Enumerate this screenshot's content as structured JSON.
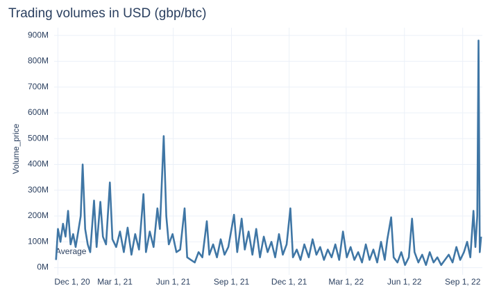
{
  "chart_data": {
    "type": "line",
    "title": "Trading volumes in USD (gbp/btc)",
    "y_label": "Volume_price",
    "annotation": "Average",
    "grid": true,
    "x": [
      "2020-11-28",
      "2020-12-01",
      "2020-12-05",
      "2020-12-09",
      "2020-12-13",
      "2020-12-17",
      "2020-12-21",
      "2020-12-25",
      "2020-12-29",
      "2021-01-02",
      "2021-01-06",
      "2021-01-09",
      "2021-01-13",
      "2021-01-17",
      "2021-01-21",
      "2021-01-27",
      "2021-01-31",
      "2021-02-06",
      "2021-02-10",
      "2021-02-15",
      "2021-02-21",
      "2021-02-25",
      "2021-03-03",
      "2021-03-09",
      "2021-03-15",
      "2021-03-21",
      "2021-03-27",
      "2021-04-02",
      "2021-04-08",
      "2021-04-15",
      "2021-04-19",
      "2021-04-25",
      "2021-05-01",
      "2021-05-07",
      "2021-05-11",
      "2021-05-17",
      "2021-05-21",
      "2021-05-25",
      "2021-05-31",
      "2021-06-06",
      "2021-06-12",
      "2021-06-19",
      "2021-06-23",
      "2021-06-29",
      "2021-07-05",
      "2021-07-11",
      "2021-07-17",
      "2021-07-24",
      "2021-07-28",
      "2021-08-03",
      "2021-08-09",
      "2021-08-15",
      "2021-08-21",
      "2021-08-27",
      "2021-09-05",
      "2021-09-10",
      "2021-09-17",
      "2021-09-22",
      "2021-09-28",
      "2021-10-04",
      "2021-10-10",
      "2021-10-16",
      "2021-10-22",
      "2021-10-28",
      "2021-11-03",
      "2021-11-09",
      "2021-11-15",
      "2021-11-21",
      "2021-11-27",
      "2021-12-03",
      "2021-12-07",
      "2021-12-13",
      "2021-12-19",
      "2021-12-25",
      "2022-01-01",
      "2022-01-07",
      "2022-01-13",
      "2022-01-19",
      "2022-01-25",
      "2022-01-31",
      "2022-02-06",
      "2022-02-12",
      "2022-02-18",
      "2022-02-24",
      "2022-03-02",
      "2022-03-08",
      "2022-03-14",
      "2022-03-20",
      "2022-03-26",
      "2022-04-01",
      "2022-04-07",
      "2022-04-13",
      "2022-04-19",
      "2022-04-25",
      "2022-05-01",
      "2022-05-05",
      "2022-05-11",
      "2022-05-15",
      "2022-05-21",
      "2022-05-27",
      "2022-06-02",
      "2022-06-08",
      "2022-06-13",
      "2022-06-17",
      "2022-06-23",
      "2022-06-29",
      "2022-07-05",
      "2022-07-11",
      "2022-07-17",
      "2022-07-23",
      "2022-07-29",
      "2022-08-04",
      "2022-08-10",
      "2022-08-16",
      "2022-08-22",
      "2022-08-28",
      "2022-09-03",
      "2022-09-08",
      "2022-09-13",
      "2022-09-18",
      "2022-09-21",
      "2022-09-24",
      "2022-09-26",
      "2022-09-28",
      "2022-09-30"
    ],
    "series": [
      {
        "name": "Volume_price",
        "color": "#3f76a5",
        "values": [
          30,
          150,
          100,
          170,
          120,
          220,
          90,
          130,
          80,
          140,
          200,
          400,
          150,
          90,
          60,
          260,
          80,
          255,
          120,
          90,
          330,
          110,
          80,
          140,
          60,
          155,
          50,
          130,
          70,
          285,
          60,
          140,
          80,
          230,
          150,
          510,
          200,
          90,
          130,
          60,
          70,
          230,
          40,
          30,
          20,
          60,
          40,
          180,
          50,
          90,
          40,
          110,
          50,
          80,
          205,
          60,
          190,
          70,
          140,
          50,
          150,
          40,
          120,
          60,
          100,
          40,
          130,
          50,
          90,
          230,
          40,
          70,
          30,
          90,
          40,
          110,
          50,
          80,
          30,
          70,
          40,
          90,
          30,
          140,
          40,
          80,
          30,
          60,
          20,
          90,
          30,
          70,
          20,
          100,
          30,
          110,
          195,
          40,
          20,
          60,
          10,
          40,
          190,
          60,
          20,
          50,
          10,
          60,
          20,
          40,
          10,
          30,
          50,
          20,
          80,
          30,
          60,
          100,
          40,
          220,
          80,
          200,
          880,
          60,
          120
        ]
      }
    ],
    "xlim": [
      "2020-11-25",
      "2022-10-02"
    ],
    "xticks": [
      {
        "value": "2020-12-01",
        "label": "Dec 1, 20"
      },
      {
        "value": "2021-03-01",
        "label": "Mar 1, 21"
      },
      {
        "value": "2021-06-01",
        "label": "Jun 1, 21"
      },
      {
        "value": "2021-09-01",
        "label": "Sep 1, 21"
      },
      {
        "value": "2021-12-01",
        "label": "Dec 1, 21"
      },
      {
        "value": "2022-03-01",
        "label": "Mar 1, 22"
      },
      {
        "value": "2022-06-01",
        "label": "Jun 1, 22"
      },
      {
        "value": "2022-09-01",
        "label": "Sep 1, 22"
      }
    ],
    "ylim": [
      -28,
      930
    ],
    "yticks": [
      {
        "value": 0,
        "label": "0M"
      },
      {
        "value": 100,
        "label": "100M"
      },
      {
        "value": 200,
        "label": "200M"
      },
      {
        "value": 300,
        "label": "300M"
      },
      {
        "value": 400,
        "label": "400M"
      },
      {
        "value": 500,
        "label": "500M"
      },
      {
        "value": 600,
        "label": "600M"
      },
      {
        "value": 700,
        "label": "700M"
      },
      {
        "value": 800,
        "label": "800M"
      },
      {
        "value": 900,
        "label": "900M"
      }
    ]
  }
}
